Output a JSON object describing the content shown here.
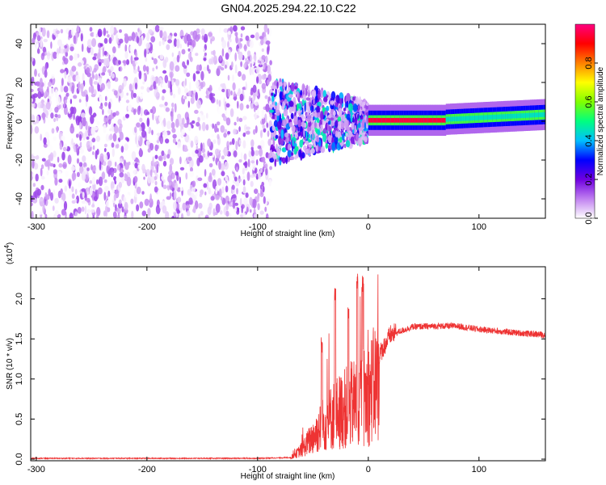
{
  "title": "GN04.2025.294.22.10.C22",
  "chart_data": [
    {
      "type": "heatmap",
      "xlabel": "Height of straight line (km)",
      "ylabel": "Frequency (Hz)",
      "xlim": [
        -305,
        160
      ],
      "ylim": [
        -50,
        50
      ],
      "x_ticks": [
        -300,
        -200,
        -100,
        0,
        100
      ],
      "x_tick_labels": [
        "-300",
        "-200",
        "-100",
        "0",
        "100"
      ],
      "y_ticks": [
        -40,
        -20,
        0,
        20,
        40
      ],
      "y_tick_labels": [
        "-40",
        "-20",
        "0",
        "20",
        "40"
      ],
      "colorbar": {
        "label": "Normalized spectral amplitude",
        "range": [
          0,
          1
        ],
        "ticks": [
          0.0,
          0.2,
          0.4,
          0.6,
          0.8
        ],
        "tick_labels": [
          "0.0",
          "0.2",
          "0.4",
          "0.6",
          "0.8"
        ],
        "colors": [
          "#ffffff",
          "#c080f0",
          "#7000e0",
          "#0000ff",
          "#00c0ff",
          "#00ff80",
          "#80ff00",
          "#ffff00",
          "#ff8000",
          "#ff0000",
          "#ff0080"
        ]
      },
      "regions": [
        {
          "x_range": [
            -305,
            -88
          ],
          "freq_range": [
            -50,
            48
          ],
          "amplitude_range": [
            0.0,
            0.1
          ]
        },
        {
          "x_range": [
            -88,
            0
          ],
          "freq_range": [
            -25,
            20
          ],
          "amplitude_range": [
            0.05,
            0.5
          ]
        },
        {
          "x_range": [
            0,
            160
          ],
          "freq_center": [
            0,
            5
          ],
          "amplitude_range": [
            0.4,
            0.95
          ]
        }
      ],
      "colors": {
        "background": "#ffffff",
        "axis": "#000000"
      }
    },
    {
      "type": "line",
      "xlabel": "Height of straight line (km)",
      "ylabel": "SNR (10 * v/v)",
      "multiplier_label": "(x10",
      "multiplier_exp": "4",
      "multiplier_close": ")",
      "xlim": [
        -305,
        160
      ],
      "ylim": [
        -0.02,
        2.4
      ],
      "x_ticks": [
        -300,
        -200,
        -100,
        0,
        100
      ],
      "x_tick_labels": [
        "-300",
        "-200",
        "-100",
        "0",
        "100"
      ],
      "y_ticks": [
        0.0,
        0.5,
        1.0,
        1.5,
        2.0
      ],
      "y_tick_labels": [
        "0.0",
        "0.5",
        "1.0",
        "1.5",
        "2.0"
      ],
      "series": [
        {
          "color": "#ee3333",
          "envelope": [
            {
              "x": -305,
              "y": 0.01
            },
            {
              "x": -100,
              "y": 0.01
            },
            {
              "x": -70,
              "y": 0.02
            },
            {
              "x": -60,
              "y": 0.15
            },
            {
              "x": -50,
              "y": 0.35
            },
            {
              "x": -40,
              "y": 0.55
            },
            {
              "x": -30,
              "y": 0.7
            },
            {
              "x": -20,
              "y": 0.8
            },
            {
              "x": -10,
              "y": 0.9
            },
            {
              "x": 0,
              "y": 1.0
            },
            {
              "x": 10,
              "y": 1.3
            },
            {
              "x": 20,
              "y": 1.55
            },
            {
              "x": 40,
              "y": 1.65
            },
            {
              "x": 60,
              "y": 1.66
            },
            {
              "x": 80,
              "y": 1.66
            },
            {
              "x": 100,
              "y": 1.62
            },
            {
              "x": 130,
              "y": 1.58
            },
            {
              "x": 160,
              "y": 1.55
            }
          ],
          "peaks": [
            {
              "x": -42,
              "y": 1.55
            },
            {
              "x": -30,
              "y": 2.2
            },
            {
              "x": -18,
              "y": 1.9
            },
            {
              "x": -10,
              "y": 2.35
            },
            {
              "x": -5,
              "y": 2.3
            }
          ]
        }
      ]
    }
  ]
}
